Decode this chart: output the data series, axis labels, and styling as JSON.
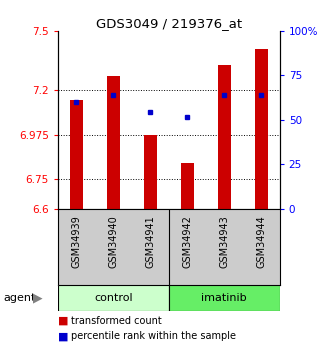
{
  "title": "GDS3049 / 219376_at",
  "categories": [
    "GSM34939",
    "GSM34940",
    "GSM34941",
    "GSM34942",
    "GSM34943",
    "GSM34944"
  ],
  "groups": [
    "control",
    "control",
    "control",
    "imatinib",
    "imatinib",
    "imatinib"
  ],
  "red_values": [
    7.15,
    7.27,
    6.975,
    6.83,
    7.33,
    7.41
  ],
  "blue_values": [
    7.14,
    7.175,
    7.09,
    7.065,
    7.175,
    7.175
  ],
  "ylim": [
    6.6,
    7.5
  ],
  "yticks": [
    6.6,
    6.75,
    6.975,
    7.2,
    7.5
  ],
  "ytick_labels": [
    "6.6",
    "6.75",
    "6.975",
    "7.2",
    "7.5"
  ],
  "y2lim": [
    0,
    100
  ],
  "y2ticks": [
    0,
    25,
    50,
    75,
    100
  ],
  "y2tick_labels": [
    "0",
    "25",
    "50",
    "75",
    "100%"
  ],
  "bar_bottom": 6.6,
  "bar_color": "#cc0000",
  "dot_color": "#0000cc",
  "group_color_control": "#ccffcc",
  "group_color_imatinib": "#66ee66",
  "label_bg_color": "#cccccc",
  "legend_items": [
    "transformed count",
    "percentile rank within the sample"
  ],
  "agent_label": "agent",
  "gridline_y": [
    7.2,
    6.975,
    6.75
  ]
}
